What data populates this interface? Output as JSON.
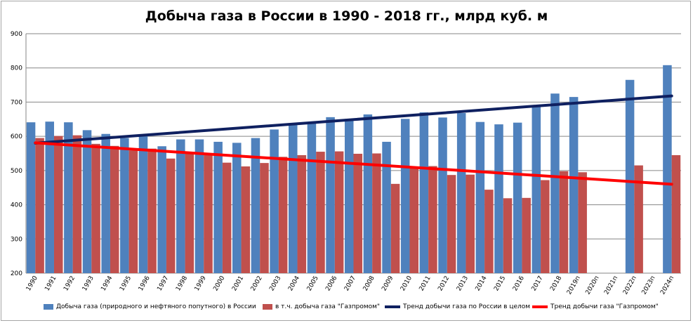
{
  "chart_data": {
    "type": "bar",
    "title": "Добыча газа в России в 1990 - 2018 гг., млрд куб. м",
    "categories": [
      "1990",
      "1991",
      "1992",
      "1993",
      "1994",
      "1995",
      "1996",
      "1997",
      "1998",
      "1999",
      "2000",
      "2001",
      "2002",
      "2003",
      "2004",
      "2005",
      "2006",
      "2007",
      "2008",
      "2009",
      "2010",
      "2011",
      "2012",
      "2013",
      "2014",
      "2015",
      "2016",
      "2017",
      "2018",
      "2019п",
      "2020п",
      "2021п",
      "2022п",
      "2023п",
      "2024п"
    ],
    "y_ticks": [
      "200",
      "300",
      "400",
      "500",
      "600",
      "700",
      "800",
      "900"
    ],
    "ylim": [
      200,
      900
    ],
    "grid": true,
    "legend_position": "bottom",
    "series": [
      {
        "name": "Добыча газа (природного  и нефтяного попутного)  в России",
        "color": "#4f81bd",
        "values": [
          641,
          643,
          641,
          618,
          607,
          595,
          601,
          571,
          591,
          591,
          584,
          581,
          595,
          620,
          633,
          641,
          656,
          651,
          664,
          584,
          651,
          670,
          655,
          668,
          642,
          635,
          640,
          691,
          725,
          715,
          null,
          null,
          765,
          null,
          808
        ]
      },
      {
        "name": "в т.ч. добыча газа \"Газпромом\"",
        "color": "#c0504d",
        "values": [
          595,
          601,
          603,
          578,
          572,
          559,
          564,
          535,
          553,
          546,
          523,
          512,
          522,
          540,
          545,
          555,
          556,
          549,
          550,
          461,
          509,
          513,
          487,
          488,
          444,
          419,
          420,
          472,
          498,
          495,
          null,
          null,
          515,
          null,
          545
        ]
      }
    ],
    "trends": [
      {
        "name": "Тренд добычи газа по России в целом",
        "color": "#0f2060",
        "start": 580,
        "end": 718
      },
      {
        "name": "Тренд добычи газа \"Газпромом\"",
        "color": "#ff0000",
        "start": 581,
        "end": 460
      }
    ]
  }
}
